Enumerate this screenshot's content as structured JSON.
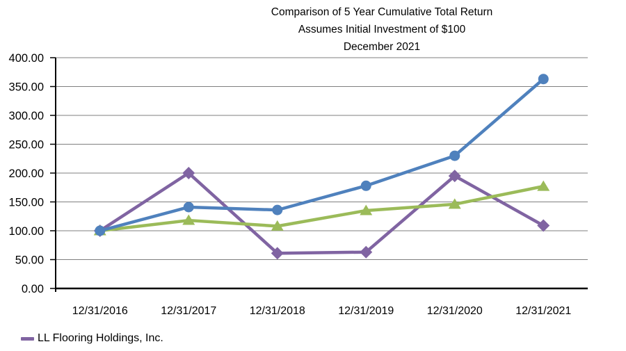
{
  "chart_data": {
    "type": "line",
    "title_lines": [
      "Comparison of 5 Year Cumulative Total Return",
      "Assumes Initial Investment of $100",
      "December 2021"
    ],
    "categories": [
      "12/31/2016",
      "12/31/2017",
      "12/31/2018",
      "12/31/2019",
      "12/31/2020",
      "12/31/2021"
    ],
    "series": [
      {
        "name": "LL Flooring Holdings, Inc.",
        "color": "#8064A2",
        "marker": "diamond",
        "values": [
          100,
          200,
          61,
          63,
          195,
          109
        ]
      },
      {
        "name": "",
        "color": "#9BBB59",
        "marker": "triangle",
        "values": [
          100,
          118,
          108,
          135,
          146,
          177
        ]
      },
      {
        "name": "",
        "color": "#4F81BD",
        "marker": "circle",
        "values": [
          100,
          141,
          136,
          178,
          230,
          363
        ]
      }
    ],
    "ylim": [
      0,
      400
    ],
    "ytick_step": 50,
    "ytick_format_decimals": 2,
    "grid": true,
    "gridline_color": "#7F7F7F",
    "axis_color": "#000000",
    "legend_position": "bottom-left",
    "legend": [
      {
        "label": "LL Flooring Holdings, Inc.",
        "color": "#8064A2"
      }
    ]
  }
}
